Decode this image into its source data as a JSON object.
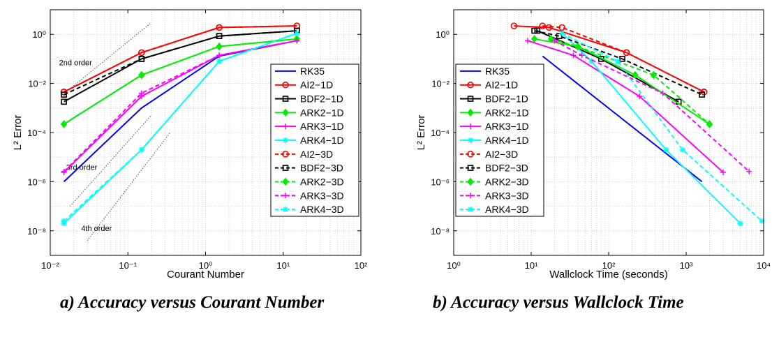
{
  "captions": {
    "a": "a) Accuracy versus Courant Number",
    "b": "b) Accuracy versus Wallclock Time"
  },
  "legend_labels": [
    "RK35",
    "AI2−1D",
    "BDF2−1D",
    "ARK2−1D",
    "ARK3−1D",
    "ARK4−1D",
    "AI2−3D",
    "BDF2−3D",
    "ARK2−3D",
    "ARK3−3D",
    "ARK4−3D"
  ],
  "chart_data": [
    {
      "type": "line",
      "xlabel": "Courant Number",
      "ylabel": "L² Error",
      "xscale": "log",
      "yscale": "log",
      "xlim": [
        0.01,
        100
      ],
      "ylim": [
        1e-09,
        10
      ],
      "xticks": [
        0.01,
        0.1,
        1,
        10,
        100
      ],
      "xtick_labels": [
        "10⁻²",
        "10⁻¹",
        "10⁰",
        "10¹",
        "10²"
      ],
      "yticks": [
        1e-08,
        1e-06,
        0.0001,
        0.01,
        1
      ],
      "ytick_labels": [
        "10⁻⁸",
        "10⁻⁶",
        "10⁻⁴",
        "10⁻²",
        "10⁰"
      ],
      "grid": true,
      "legend_position": "right",
      "annotations": [
        {
          "text": "2nd order",
          "x": 0.013,
          "y": 0.055,
          "line": [
            [
              0.02,
              0.008
            ],
            [
              0.2,
              3.0
            ]
          ]
        },
        {
          "text": "3rd order",
          "x": 0.016,
          "y": 3e-06,
          "line": [
            [
              0.018,
              1e-07
            ],
            [
              0.2,
              0.0005
            ]
          ]
        },
        {
          "text": "4th order",
          "x": 0.025,
          "y": 1e-08,
          "line": [
            [
              0.03,
              4e-09
            ],
            [
              0.35,
              0.0001
            ]
          ]
        }
      ],
      "series": [
        {
          "name": "RK35",
          "style": "solid",
          "color": "#0000ff",
          "marker": "none",
          "x": [
            0.015,
            0.15,
            1.5,
            15
          ],
          "y": [
            1e-06,
            0.001,
            0.13,
            0.55
          ]
        },
        {
          "name": "AI2−1D",
          "style": "solid",
          "color": "#ff0000",
          "marker": "circle",
          "x": [
            0.015,
            0.15,
            1.5,
            15
          ],
          "y": [
            0.0045,
            0.18,
            1.9,
            2.2
          ]
        },
        {
          "name": "BDF2−1D",
          "style": "solid",
          "color": "#000000",
          "marker": "square",
          "x": [
            0.015,
            0.15,
            1.5,
            15
          ],
          "y": [
            0.0018,
            0.1,
            0.85,
            1.4
          ]
        },
        {
          "name": "ARK2−1D",
          "style": "solid",
          "color": "#00ee00",
          "marker": "diamond",
          "x": [
            0.015,
            0.15,
            1.5,
            15
          ],
          "y": [
            0.00022,
            0.022,
            0.32,
            0.65
          ]
        },
        {
          "name": "ARK3−1D",
          "style": "solid",
          "color": "#ff00ff",
          "marker": "plus",
          "x": [
            0.015,
            0.15,
            1.5,
            15
          ],
          "y": [
            2.4e-06,
            0.003,
            0.14,
            0.55
          ]
        },
        {
          "name": "ARK4−1D",
          "style": "solid",
          "color": "#00ffff",
          "marker": "star",
          "x": [
            0.015,
            0.15,
            1.5,
            15
          ],
          "y": [
            2e-08,
            2e-05,
            0.08,
            1.1
          ]
        },
        {
          "name": "AI2−3D",
          "style": "dashed",
          "color": "#ff0000",
          "marker": "circle",
          "x": [
            0.015,
            0.15,
            1.5,
            15
          ],
          "y": [
            0.0045,
            0.18,
            1.9,
            2.2
          ]
        },
        {
          "name": "BDF2−3D",
          "style": "dashed",
          "color": "#000000",
          "marker": "square",
          "x": [
            0.015,
            0.15,
            1.5,
            15
          ],
          "y": [
            0.0035,
            0.1,
            0.85,
            1.4
          ]
        },
        {
          "name": "ARK2−3D",
          "style": "dashed",
          "color": "#00ee00",
          "marker": "diamond",
          "x": [
            0.015,
            0.15,
            1.5,
            15
          ],
          "y": [
            0.00022,
            0.022,
            0.32,
            0.65
          ]
        },
        {
          "name": "ARK3−3D",
          "style": "dashed",
          "color": "#ff00ff",
          "marker": "plus",
          "x": [
            0.015,
            0.15,
            1.5,
            15
          ],
          "y": [
            2.6e-06,
            0.004,
            0.14,
            0.55
          ]
        },
        {
          "name": "ARK4−3D",
          "style": "dashed",
          "color": "#00ffff",
          "marker": "star",
          "x": [
            0.015,
            0.15,
            1.5,
            15
          ],
          "y": [
            2.5e-08,
            2e-05,
            0.08,
            1.1
          ]
        }
      ]
    },
    {
      "type": "line",
      "xlabel": "Wallclock Time (seconds)",
      "ylabel": "L² Error",
      "xscale": "log",
      "yscale": "log",
      "xlim": [
        1,
        10000
      ],
      "ylim": [
        1e-09,
        10
      ],
      "xticks": [
        1,
        10,
        100,
        1000,
        10000
      ],
      "xtick_labels": [
        "10⁰",
        "10¹",
        "10²",
        "10³",
        "10⁴"
      ],
      "yticks": [
        1e-08,
        1e-06,
        0.0001,
        0.01,
        1
      ],
      "ytick_labels": [
        "10⁻⁸",
        "10⁻⁶",
        "10⁻⁴",
        "10⁻²",
        "10⁰"
      ],
      "grid": true,
      "legend_position": "left",
      "series": [
        {
          "name": "RK35",
          "style": "solid",
          "color": "#0000ff",
          "marker": "none",
          "x": [
            14,
            1600
          ],
          "y": [
            0.13,
            1e-06
          ]
        },
        {
          "name": "AI2−1D",
          "style": "solid",
          "color": "#ff0000",
          "marker": "circle",
          "x": [
            6,
            17,
            170,
            1700
          ],
          "y": [
            2.2,
            1.9,
            0.18,
            0.0045
          ]
        },
        {
          "name": "BDF2−1D",
          "style": "solid",
          "color": "#000000",
          "marker": "square",
          "x": [
            12,
            80,
            800
          ],
          "y": [
            1.4,
            0.1,
            0.0018
          ]
        },
        {
          "name": "ARK2−1D",
          "style": "solid",
          "color": "#00ee00",
          "marker": "diamond",
          "x": [
            11,
            40,
            220,
            2000
          ],
          "y": [
            0.65,
            0.32,
            0.022,
            0.00022
          ]
        },
        {
          "name": "ARK3−1D",
          "style": "solid",
          "color": "#ff00ff",
          "marker": "plus",
          "x": [
            9,
            35,
            250,
            3000
          ],
          "y": [
            0.55,
            0.14,
            0.003,
            2.4e-06
          ]
        },
        {
          "name": "ARK4−1D",
          "style": "solid",
          "color": "#00ffff",
          "marker": "star",
          "x": [
            25,
            60,
            550,
            5000
          ],
          "y": [
            1.1,
            0.08,
            2e-05,
            2e-08
          ]
        },
        {
          "name": "AI2−3D",
          "style": "dashed",
          "color": "#ff0000",
          "marker": "circle",
          "x": [
            14,
            25,
            170,
            1700
          ],
          "y": [
            2.2,
            1.9,
            0.18,
            0.0045
          ]
        },
        {
          "name": "BDF2−3D",
          "style": "dashed",
          "color": "#000000",
          "marker": "square",
          "x": [
            11,
            23,
            150,
            1600
          ],
          "y": [
            1.4,
            0.85,
            0.1,
            0.0035
          ]
        },
        {
          "name": "ARK2−3D",
          "style": "dashed",
          "color": "#00ee00",
          "marker": "diamond",
          "x": [
            18,
            40,
            380,
            2000
          ],
          "y": [
            0.65,
            0.32,
            0.022,
            0.00022
          ]
        },
        {
          "name": "ARK3−3D",
          "style": "dashed",
          "color": "#ff00ff",
          "marker": "plus",
          "x": [
            20,
            45,
            500,
            6500
          ],
          "y": [
            0.55,
            0.14,
            0.004,
            2.6e-06
          ]
        },
        {
          "name": "ARK4−3D",
          "style": "dashed",
          "color": "#00ffff",
          "marker": "star",
          "x": [
            25,
            130,
            900,
            9500
          ],
          "y": [
            1.1,
            0.08,
            2e-05,
            2.5e-08
          ]
        }
      ]
    }
  ]
}
